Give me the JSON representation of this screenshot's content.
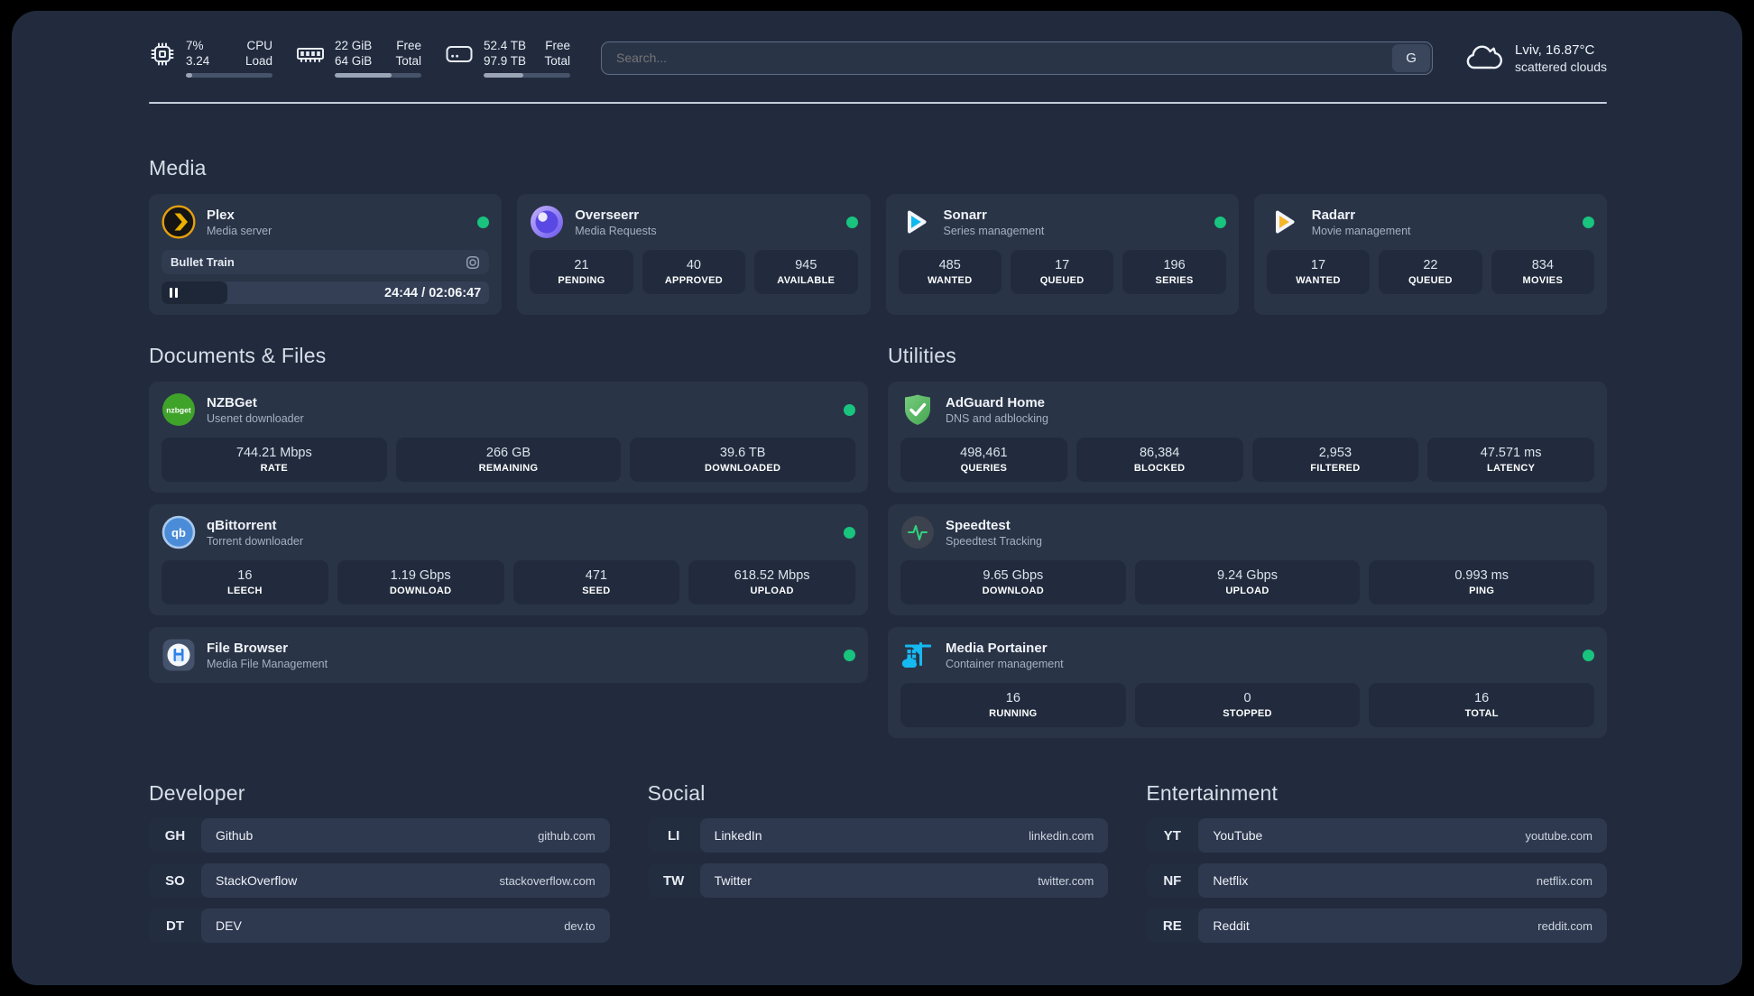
{
  "topbar": {
    "stats": [
      {
        "v1": "7%",
        "l1": "CPU",
        "v2": "3.24",
        "l2": "Load",
        "progress": 7
      },
      {
        "v1": "22 GiB",
        "l1": "Free",
        "v2": "64 GiB",
        "l2": "Total",
        "progress": 66
      },
      {
        "v1": "52.4 TB",
        "l1": "Free",
        "v2": "97.9 TB",
        "l2": "Total",
        "progress": 46
      }
    ],
    "search": {
      "placeholder": "Search...",
      "button_label": "G"
    },
    "weather": {
      "location": "Lviv, 16.87°C",
      "condition": "scattered clouds"
    }
  },
  "sections": {
    "media": {
      "title": "Media"
    },
    "documents": {
      "title": "Documents & Files"
    },
    "utilities": {
      "title": "Utilities"
    }
  },
  "apps": {
    "plex": {
      "name": "Plex",
      "desc": "Media server",
      "now_playing": {
        "title": "Bullet Train",
        "time": "24:44 / 02:06:47",
        "progress": 20
      }
    },
    "overseerr": {
      "name": "Overseerr",
      "desc": "Media Requests",
      "stats": [
        {
          "v": "21",
          "l": "PENDING"
        },
        {
          "v": "40",
          "l": "APPROVED"
        },
        {
          "v": "945",
          "l": "AVAILABLE"
        }
      ]
    },
    "sonarr": {
      "name": "Sonarr",
      "desc": "Series management",
      "stats": [
        {
          "v": "485",
          "l": "WANTED"
        },
        {
          "v": "17",
          "l": "QUEUED"
        },
        {
          "v": "196",
          "l": "SERIES"
        }
      ]
    },
    "radarr": {
      "name": "Radarr",
      "desc": "Movie management",
      "stats": [
        {
          "v": "17",
          "l": "WANTED"
        },
        {
          "v": "22",
          "l": "QUEUED"
        },
        {
          "v": "834",
          "l": "MOVIES"
        }
      ]
    },
    "nzbget": {
      "name": "NZBGet",
      "desc": "Usenet downloader",
      "stats": [
        {
          "v": "744.21 Mbps",
          "l": "RATE"
        },
        {
          "v": "266 GB",
          "l": "REMAINING"
        },
        {
          "v": "39.6 TB",
          "l": "DOWNLOADED"
        }
      ]
    },
    "qbittorrent": {
      "name": "qBittorrent",
      "desc": "Torrent downloader",
      "stats": [
        {
          "v": "16",
          "l": "LEECH"
        },
        {
          "v": "1.19 Gbps",
          "l": "DOWNLOAD"
        },
        {
          "v": "471",
          "l": "SEED"
        },
        {
          "v": "618.52 Mbps",
          "l": "UPLOAD"
        }
      ]
    },
    "filebrowser": {
      "name": "File Browser",
      "desc": "Media File Management"
    },
    "adguard": {
      "name": "AdGuard Home",
      "desc": "DNS and adblocking",
      "stats": [
        {
          "v": "498,461",
          "l": "QUERIES"
        },
        {
          "v": "86,384",
          "l": "BLOCKED"
        },
        {
          "v": "2,953",
          "l": "FILTERED"
        },
        {
          "v": "47.571 ms",
          "l": "LATENCY"
        }
      ]
    },
    "speedtest": {
      "name": "Speedtest",
      "desc": "Speedtest Tracking",
      "stats": [
        {
          "v": "9.65 Gbps",
          "l": "DOWNLOAD"
        },
        {
          "v": "9.24 Gbps",
          "l": "UPLOAD"
        },
        {
          "v": "0.993 ms",
          "l": "PING"
        }
      ]
    },
    "portainer": {
      "name": "Media Portainer",
      "desc": "Container management",
      "stats": [
        {
          "v": "16",
          "l": "RUNNING"
        },
        {
          "v": "0",
          "l": "STOPPED"
        },
        {
          "v": "16",
          "l": "TOTAL"
        }
      ]
    }
  },
  "link_sections": {
    "developer": {
      "title": "Developer",
      "links": [
        {
          "abbr": "GH",
          "name": "Github",
          "url": "github.com"
        },
        {
          "abbr": "SO",
          "name": "StackOverflow",
          "url": "stackoverflow.com"
        },
        {
          "abbr": "DT",
          "name": "DEV",
          "url": "dev.to"
        }
      ]
    },
    "social": {
      "title": "Social",
      "links": [
        {
          "abbr": "LI",
          "name": "LinkedIn",
          "url": "linkedin.com"
        },
        {
          "abbr": "TW",
          "name": "Twitter",
          "url": "twitter.com"
        }
      ]
    },
    "entertainment": {
      "title": "Entertainment",
      "links": [
        {
          "abbr": "YT",
          "name": "YouTube",
          "url": "youtube.com"
        },
        {
          "abbr": "NF",
          "name": "Netflix",
          "url": "netflix.com"
        },
        {
          "abbr": "RE",
          "name": "Reddit",
          "url": "reddit.com"
        }
      ]
    }
  },
  "colors": {
    "status_online": "#18c47e",
    "panel_background": "#222b3e",
    "card_background": "#2a3447"
  }
}
